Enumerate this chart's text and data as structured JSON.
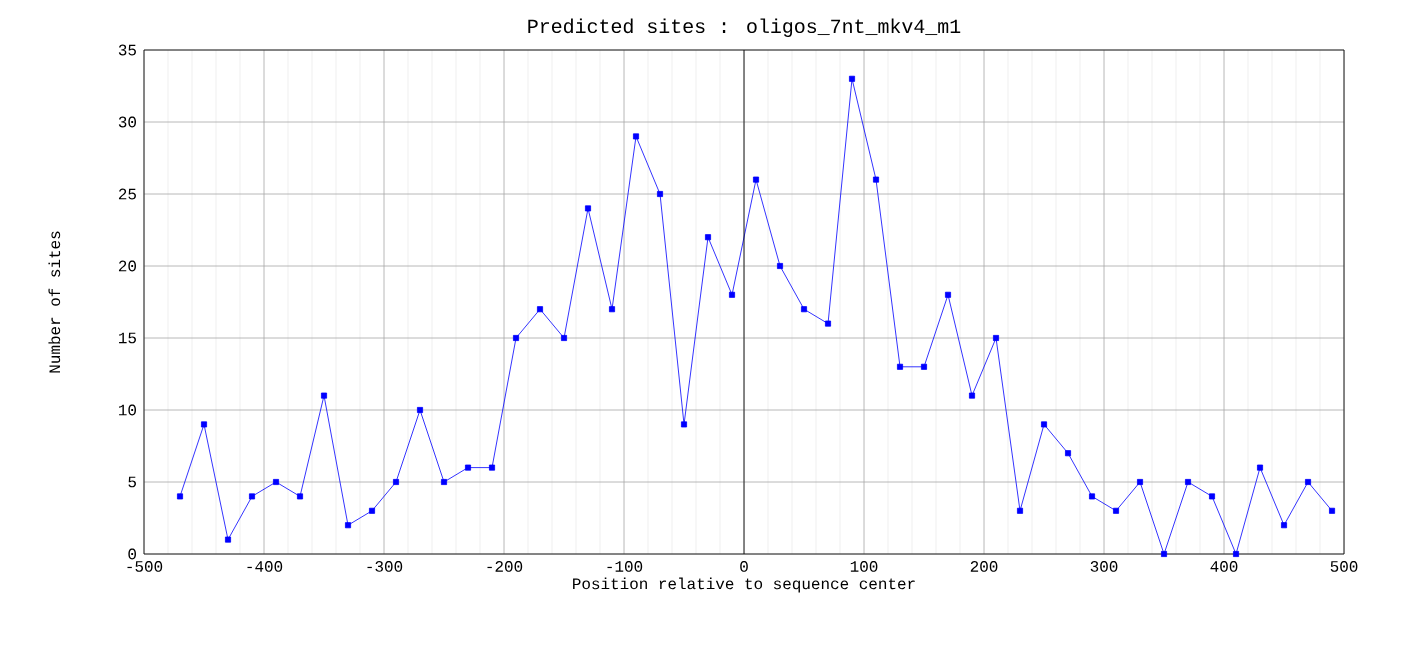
{
  "chart_data": {
    "type": "line",
    "title": "Predicted sites : oligos_7nt_mkv4_m1",
    "xlabel": "Position relative to sequence center",
    "ylabel": "Number of sites",
    "x": [
      -470,
      -450,
      -430,
      -410,
      -390,
      -370,
      -350,
      -330,
      -310,
      -290,
      -270,
      -250,
      -230,
      -210,
      -190,
      -170,
      -150,
      -130,
      -110,
      -90,
      -70,
      -50,
      -30,
      -10,
      10,
      30,
      50,
      70,
      90,
      110,
      130,
      150,
      170,
      190,
      210,
      230,
      250,
      270,
      290,
      310,
      330,
      350,
      370,
      390,
      410,
      430,
      450,
      470,
      490
    ],
    "series": [
      {
        "color": "#0000ff",
        "values": [
          4,
          9,
          1,
          4,
          5,
          4,
          11,
          2,
          3,
          5,
          10,
          5,
          6,
          6,
          15,
          17,
          15,
          24,
          17,
          29,
          25,
          9,
          22,
          18,
          26,
          20,
          17,
          16,
          33,
          26,
          13,
          13,
          18,
          11,
          15,
          3,
          9,
          7,
          4,
          3,
          5,
          0,
          5,
          4,
          0,
          6,
          2,
          5,
          3
        ]
      }
    ],
    "xlim": [
      -500,
      500
    ],
    "xticks": [
      -500,
      -400,
      -300,
      -200,
      -100,
      0,
      100,
      200,
      300,
      400,
      500
    ],
    "ylim": [
      0,
      35
    ],
    "yticks": [
      0,
      5,
      10,
      15,
      20,
      25,
      30,
      35
    ],
    "ref_lines": [
      {
        "axis": "x",
        "value": 0,
        "color": "#000000"
      }
    ],
    "grid": true,
    "marker": "square",
    "line_style": "solid"
  }
}
